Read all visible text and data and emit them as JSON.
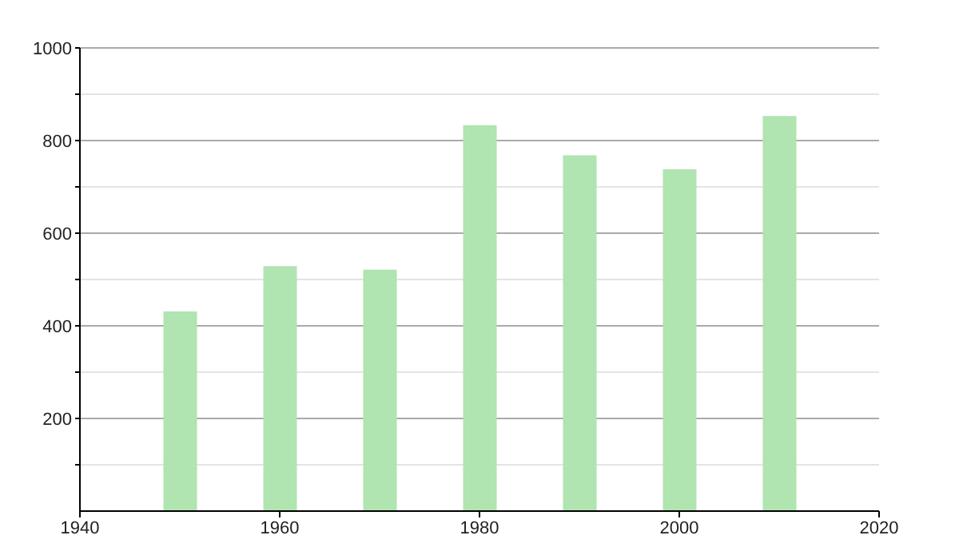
{
  "chart_data": {
    "type": "bar",
    "x": [
      1950,
      1960,
      1970,
      1980,
      1990,
      2000,
      2010
    ],
    "values": [
      431,
      529,
      521,
      833,
      768,
      738,
      853
    ],
    "color": "#b0e4b0",
    "xlim": [
      1940,
      2020
    ],
    "xticks": [
      1940,
      1960,
      1980,
      2000,
      2020
    ],
    "ylim": [
      0,
      1000
    ],
    "yticks": [
      {
        "value": 100,
        "label": null
      },
      200,
      {
        "value": 300,
        "label": null
      },
      400,
      {
        "value": 500,
        "label": null
      },
      600,
      {
        "value": 700,
        "label": null
      },
      800,
      {
        "value": 900,
        "label": null
      },
      1000
    ],
    "grid": "y"
  }
}
